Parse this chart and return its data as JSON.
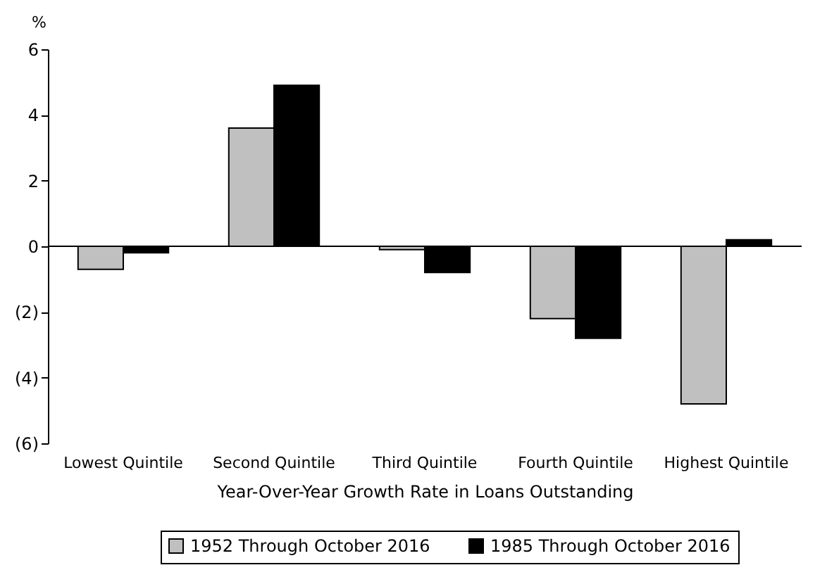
{
  "chart_data": {
    "type": "bar",
    "xlabel": "Year-Over-Year Growth Rate in Loans Outstanding",
    "ylabel": "%",
    "categories": [
      "Lowest Quintile",
      "Second Quintile",
      "Third Quintile",
      "Fourth Quintile",
      "Highest Quintile"
    ],
    "series": [
      {
        "name": "1952 Through October 2016",
        "color": "#c0c0c0",
        "values": [
          -0.7,
          3.6,
          -0.1,
          -2.2,
          -4.8
        ]
      },
      {
        "name": "1985 Through October 2016",
        "color": "#000000",
        "values": [
          -0.2,
          4.9,
          -0.8,
          -2.8,
          0.2
        ]
      }
    ],
    "ylim": [
      -6,
      6
    ],
    "yticks": [
      {
        "value": -6,
        "label": "(6)"
      },
      {
        "value": -4,
        "label": "(4)"
      },
      {
        "value": -2,
        "label": "(2)"
      },
      0,
      2,
      4,
      6
    ],
    "legend": "bottom"
  }
}
